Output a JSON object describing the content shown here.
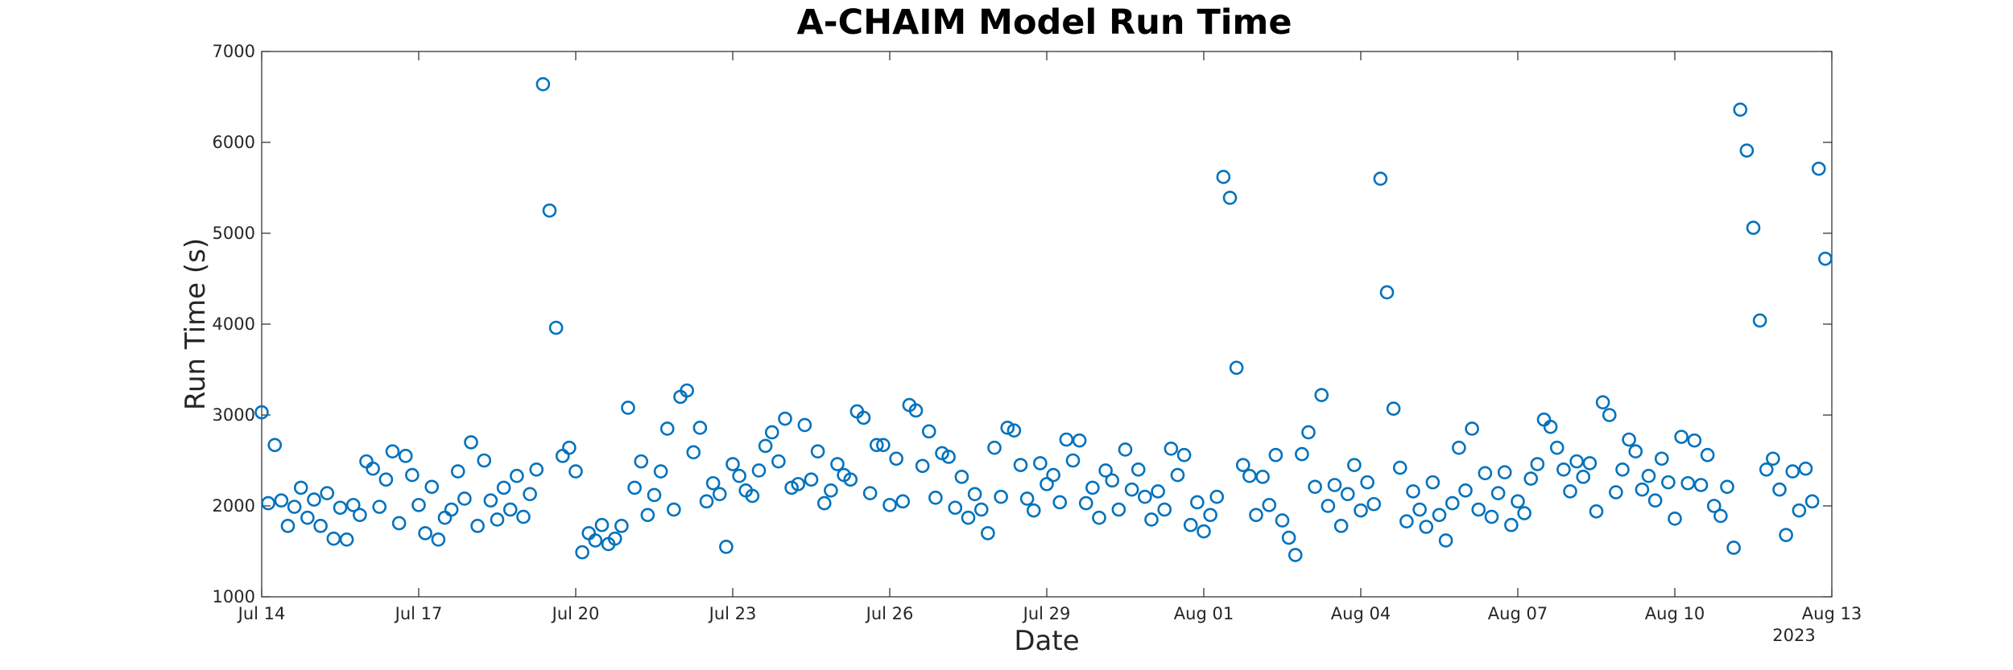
{
  "chart_data": {
    "type": "scatter",
    "title": "A-CHAIM Model Run Time",
    "xlabel": "Date",
    "ylabel": "Run Time (s)",
    "year_label": "2023",
    "xlim": [
      "2023-07-14",
      "2023-08-13"
    ],
    "ylim": [
      1000,
      7000
    ],
    "x_ticks": [
      {
        "date": "2023-07-14",
        "label": "Jul 14"
      },
      {
        "date": "2023-07-17",
        "label": "Jul 17"
      },
      {
        "date": "2023-07-20",
        "label": "Jul 20"
      },
      {
        "date": "2023-07-23",
        "label": "Jul 23"
      },
      {
        "date": "2023-07-26",
        "label": "Jul 26"
      },
      {
        "date": "2023-07-29",
        "label": "Jul 29"
      },
      {
        "date": "2023-08-01",
        "label": "Aug 01"
      },
      {
        "date": "2023-08-04",
        "label": "Aug 04"
      },
      {
        "date": "2023-08-07",
        "label": "Aug 07"
      },
      {
        "date": "2023-08-10",
        "label": "Aug 10"
      },
      {
        "date": "2023-08-13",
        "label": "Aug 13"
      }
    ],
    "y_ticks": [
      1000,
      2000,
      3000,
      4000,
      5000,
      6000,
      7000
    ],
    "marker_color": "#0072BD",
    "grid": false,
    "series": [
      {
        "points": [
          [
            "2023-07-14 00:00",
            3030
          ],
          [
            "2023-07-14 03:00",
            2030
          ],
          [
            "2023-07-14 06:00",
            2670
          ],
          [
            "2023-07-14 09:00",
            2060
          ],
          [
            "2023-07-14 12:00",
            1780
          ],
          [
            "2023-07-14 15:00",
            1990
          ],
          [
            "2023-07-14 18:00",
            2200
          ],
          [
            "2023-07-14 21:00",
            1870
          ],
          [
            "2023-07-15 00:00",
            2070
          ],
          [
            "2023-07-15 03:00",
            1780
          ],
          [
            "2023-07-15 06:00",
            2140
          ],
          [
            "2023-07-15 09:00",
            1640
          ],
          [
            "2023-07-15 12:00",
            1980
          ],
          [
            "2023-07-15 15:00",
            1630
          ],
          [
            "2023-07-15 18:00",
            2010
          ],
          [
            "2023-07-15 21:00",
            1900
          ],
          [
            "2023-07-16 00:00",
            2490
          ],
          [
            "2023-07-16 03:00",
            2410
          ],
          [
            "2023-07-16 06:00",
            1990
          ],
          [
            "2023-07-16 09:00",
            2290
          ],
          [
            "2023-07-16 12:00",
            2600
          ],
          [
            "2023-07-16 15:00",
            1810
          ],
          [
            "2023-07-16 18:00",
            2550
          ],
          [
            "2023-07-16 21:00",
            2340
          ],
          [
            "2023-07-17 00:00",
            2010
          ],
          [
            "2023-07-17 03:00",
            1700
          ],
          [
            "2023-07-17 06:00",
            2210
          ],
          [
            "2023-07-17 09:00",
            1630
          ],
          [
            "2023-07-17 12:00",
            1870
          ],
          [
            "2023-07-17 15:00",
            1960
          ],
          [
            "2023-07-17 18:00",
            2380
          ],
          [
            "2023-07-17 21:00",
            2080
          ],
          [
            "2023-07-18 00:00",
            2700
          ],
          [
            "2023-07-18 03:00",
            1780
          ],
          [
            "2023-07-18 06:00",
            2500
          ],
          [
            "2023-07-18 09:00",
            2060
          ],
          [
            "2023-07-18 12:00",
            1850
          ],
          [
            "2023-07-18 15:00",
            2200
          ],
          [
            "2023-07-18 18:00",
            1960
          ],
          [
            "2023-07-18 21:00",
            2330
          ],
          [
            "2023-07-19 00:00",
            1880
          ],
          [
            "2023-07-19 03:00",
            2130
          ],
          [
            "2023-07-19 06:00",
            2400
          ],
          [
            "2023-07-19 09:00",
            6640
          ],
          [
            "2023-07-19 12:00",
            5250
          ],
          [
            "2023-07-19 15:00",
            3960
          ],
          [
            "2023-07-19 18:00",
            2550
          ],
          [
            "2023-07-19 21:00",
            2640
          ],
          [
            "2023-07-20 00:00",
            2380
          ],
          [
            "2023-07-20 03:00",
            1490
          ],
          [
            "2023-07-20 06:00",
            1700
          ],
          [
            "2023-07-20 09:00",
            1620
          ],
          [
            "2023-07-20 12:00",
            1790
          ],
          [
            "2023-07-20 15:00",
            1580
          ],
          [
            "2023-07-20 18:00",
            1640
          ],
          [
            "2023-07-20 21:00",
            1780
          ],
          [
            "2023-07-21 00:00",
            3080
          ],
          [
            "2023-07-21 03:00",
            2200
          ],
          [
            "2023-07-21 06:00",
            2490
          ],
          [
            "2023-07-21 09:00",
            1900
          ],
          [
            "2023-07-21 12:00",
            2120
          ],
          [
            "2023-07-21 15:00",
            2380
          ],
          [
            "2023-07-21 18:00",
            2850
          ],
          [
            "2023-07-21 21:00",
            1960
          ],
          [
            "2023-07-22 00:00",
            3200
          ],
          [
            "2023-07-22 03:00",
            3270
          ],
          [
            "2023-07-22 06:00",
            2590
          ],
          [
            "2023-07-22 09:00",
            2860
          ],
          [
            "2023-07-22 12:00",
            2050
          ],
          [
            "2023-07-22 15:00",
            2250
          ],
          [
            "2023-07-22 18:00",
            2130
          ],
          [
            "2023-07-22 21:00",
            1550
          ],
          [
            "2023-07-23 00:00",
            2460
          ],
          [
            "2023-07-23 03:00",
            2330
          ],
          [
            "2023-07-23 06:00",
            2170
          ],
          [
            "2023-07-23 09:00",
            2110
          ],
          [
            "2023-07-23 12:00",
            2390
          ],
          [
            "2023-07-23 15:00",
            2660
          ],
          [
            "2023-07-23 18:00",
            2810
          ],
          [
            "2023-07-23 21:00",
            2490
          ],
          [
            "2023-07-24 00:00",
            2960
          ],
          [
            "2023-07-24 03:00",
            2200
          ],
          [
            "2023-07-24 06:00",
            2240
          ],
          [
            "2023-07-24 09:00",
            2890
          ],
          [
            "2023-07-24 12:00",
            2290
          ],
          [
            "2023-07-24 15:00",
            2600
          ],
          [
            "2023-07-24 18:00",
            2030
          ],
          [
            "2023-07-24 21:00",
            2170
          ],
          [
            "2023-07-25 00:00",
            2460
          ],
          [
            "2023-07-25 03:00",
            2340
          ],
          [
            "2023-07-25 06:00",
            2290
          ],
          [
            "2023-07-25 09:00",
            3040
          ],
          [
            "2023-07-25 12:00",
            2970
          ],
          [
            "2023-07-25 15:00",
            2140
          ],
          [
            "2023-07-25 18:00",
            2670
          ],
          [
            "2023-07-25 21:00",
            2670
          ],
          [
            "2023-07-26 00:00",
            2010
          ],
          [
            "2023-07-26 03:00",
            2520
          ],
          [
            "2023-07-26 06:00",
            2050
          ],
          [
            "2023-07-26 09:00",
            3110
          ],
          [
            "2023-07-26 12:00",
            3050
          ],
          [
            "2023-07-26 15:00",
            2440
          ],
          [
            "2023-07-26 18:00",
            2820
          ],
          [
            "2023-07-26 21:00",
            2090
          ],
          [
            "2023-07-27 00:00",
            2580
          ],
          [
            "2023-07-27 03:00",
            2540
          ],
          [
            "2023-07-27 06:00",
            1980
          ],
          [
            "2023-07-27 09:00",
            2320
          ],
          [
            "2023-07-27 12:00",
            1870
          ],
          [
            "2023-07-27 15:00",
            2130
          ],
          [
            "2023-07-27 18:00",
            1960
          ],
          [
            "2023-07-27 21:00",
            1700
          ],
          [
            "2023-07-28 00:00",
            2640
          ],
          [
            "2023-07-28 03:00",
            2100
          ],
          [
            "2023-07-28 06:00",
            2860
          ],
          [
            "2023-07-28 09:00",
            2830
          ],
          [
            "2023-07-28 12:00",
            2450
          ],
          [
            "2023-07-28 15:00",
            2080
          ],
          [
            "2023-07-28 18:00",
            1950
          ],
          [
            "2023-07-28 21:00",
            2470
          ],
          [
            "2023-07-29 00:00",
            2240
          ],
          [
            "2023-07-29 03:00",
            2340
          ],
          [
            "2023-07-29 06:00",
            2040
          ],
          [
            "2023-07-29 09:00",
            2730
          ],
          [
            "2023-07-29 12:00",
            2500
          ],
          [
            "2023-07-29 15:00",
            2720
          ],
          [
            "2023-07-29 18:00",
            2030
          ],
          [
            "2023-07-29 21:00",
            2200
          ],
          [
            "2023-07-30 00:00",
            1870
          ],
          [
            "2023-07-30 03:00",
            2390
          ],
          [
            "2023-07-30 06:00",
            2280
          ],
          [
            "2023-07-30 09:00",
            1960
          ],
          [
            "2023-07-30 12:00",
            2620
          ],
          [
            "2023-07-30 15:00",
            2180
          ],
          [
            "2023-07-30 18:00",
            2400
          ],
          [
            "2023-07-30 21:00",
            2100
          ],
          [
            "2023-07-31 00:00",
            1850
          ],
          [
            "2023-07-31 03:00",
            2160
          ],
          [
            "2023-07-31 06:00",
            1960
          ],
          [
            "2023-07-31 09:00",
            2630
          ],
          [
            "2023-07-31 12:00",
            2340
          ],
          [
            "2023-07-31 15:00",
            2560
          ],
          [
            "2023-07-31 18:00",
            1790
          ],
          [
            "2023-07-31 21:00",
            2040
          ],
          [
            "2023-08-01 00:00",
            1720
          ],
          [
            "2023-08-01 03:00",
            1900
          ],
          [
            "2023-08-01 06:00",
            2100
          ],
          [
            "2023-08-01 09:00",
            5620
          ],
          [
            "2023-08-01 12:00",
            5390
          ],
          [
            "2023-08-01 15:00",
            3520
          ],
          [
            "2023-08-01 18:00",
            2450
          ],
          [
            "2023-08-01 21:00",
            2330
          ],
          [
            "2023-08-02 00:00",
            1900
          ],
          [
            "2023-08-02 03:00",
            2320
          ],
          [
            "2023-08-02 06:00",
            2010
          ],
          [
            "2023-08-02 09:00",
            2560
          ],
          [
            "2023-08-02 12:00",
            1840
          ],
          [
            "2023-08-02 15:00",
            1650
          ],
          [
            "2023-08-02 18:00",
            1460
          ],
          [
            "2023-08-02 21:00",
            2570
          ],
          [
            "2023-08-03 00:00",
            2810
          ],
          [
            "2023-08-03 03:00",
            2210
          ],
          [
            "2023-08-03 06:00",
            3220
          ],
          [
            "2023-08-03 09:00",
            2000
          ],
          [
            "2023-08-03 12:00",
            2230
          ],
          [
            "2023-08-03 15:00",
            1780
          ],
          [
            "2023-08-03 18:00",
            2130
          ],
          [
            "2023-08-03 21:00",
            2450
          ],
          [
            "2023-08-04 00:00",
            1950
          ],
          [
            "2023-08-04 03:00",
            2260
          ],
          [
            "2023-08-04 06:00",
            2020
          ],
          [
            "2023-08-04 09:00",
            5600
          ],
          [
            "2023-08-04 12:00",
            4350
          ],
          [
            "2023-08-04 15:00",
            3070
          ],
          [
            "2023-08-04 18:00",
            2420
          ],
          [
            "2023-08-04 21:00",
            1830
          ],
          [
            "2023-08-05 00:00",
            2160
          ],
          [
            "2023-08-05 03:00",
            1960
          ],
          [
            "2023-08-05 06:00",
            1770
          ],
          [
            "2023-08-05 09:00",
            2260
          ],
          [
            "2023-08-05 12:00",
            1900
          ],
          [
            "2023-08-05 15:00",
            1620
          ],
          [
            "2023-08-05 18:00",
            2030
          ],
          [
            "2023-08-05 21:00",
            2640
          ],
          [
            "2023-08-06 00:00",
            2170
          ],
          [
            "2023-08-06 03:00",
            2850
          ],
          [
            "2023-08-06 06:00",
            1960
          ],
          [
            "2023-08-06 09:00",
            2360
          ],
          [
            "2023-08-06 12:00",
            1880
          ],
          [
            "2023-08-06 15:00",
            2140
          ],
          [
            "2023-08-06 18:00",
            2370
          ],
          [
            "2023-08-06 21:00",
            1790
          ],
          [
            "2023-08-07 00:00",
            2050
          ],
          [
            "2023-08-07 03:00",
            1920
          ],
          [
            "2023-08-07 06:00",
            2300
          ],
          [
            "2023-08-07 09:00",
            2460
          ],
          [
            "2023-08-07 12:00",
            2950
          ],
          [
            "2023-08-07 15:00",
            2870
          ],
          [
            "2023-08-07 18:00",
            2640
          ],
          [
            "2023-08-07 21:00",
            2400
          ],
          [
            "2023-08-08 00:00",
            2160
          ],
          [
            "2023-08-08 03:00",
            2490
          ],
          [
            "2023-08-08 06:00",
            2320
          ],
          [
            "2023-08-08 09:00",
            2470
          ],
          [
            "2023-08-08 12:00",
            1940
          ],
          [
            "2023-08-08 15:00",
            3140
          ],
          [
            "2023-08-08 18:00",
            3000
          ],
          [
            "2023-08-08 21:00",
            2150
          ],
          [
            "2023-08-09 00:00",
            2400
          ],
          [
            "2023-08-09 03:00",
            2730
          ],
          [
            "2023-08-09 06:00",
            2600
          ],
          [
            "2023-08-09 09:00",
            2180
          ],
          [
            "2023-08-09 12:00",
            2330
          ],
          [
            "2023-08-09 15:00",
            2060
          ],
          [
            "2023-08-09 18:00",
            2520
          ],
          [
            "2023-08-09 21:00",
            2260
          ],
          [
            "2023-08-10 00:00",
            1860
          ],
          [
            "2023-08-10 03:00",
            2760
          ],
          [
            "2023-08-10 06:00",
            2250
          ],
          [
            "2023-08-10 09:00",
            2720
          ],
          [
            "2023-08-10 12:00",
            2230
          ],
          [
            "2023-08-10 15:00",
            2560
          ],
          [
            "2023-08-10 18:00",
            2000
          ],
          [
            "2023-08-10 21:00",
            1890
          ],
          [
            "2023-08-11 00:00",
            2210
          ],
          [
            "2023-08-11 03:00",
            1540
          ],
          [
            "2023-08-11 06:00",
            6360
          ],
          [
            "2023-08-11 09:00",
            5910
          ],
          [
            "2023-08-11 12:00",
            5060
          ],
          [
            "2023-08-11 15:00",
            4040
          ],
          [
            "2023-08-11 18:00",
            2400
          ],
          [
            "2023-08-11 21:00",
            2520
          ],
          [
            "2023-08-12 00:00",
            2180
          ],
          [
            "2023-08-12 03:00",
            1680
          ],
          [
            "2023-08-12 06:00",
            2380
          ],
          [
            "2023-08-12 09:00",
            1950
          ],
          [
            "2023-08-12 12:00",
            2410
          ],
          [
            "2023-08-12 15:00",
            2050
          ],
          [
            "2023-08-12 18:00",
            5710
          ],
          [
            "2023-08-12 21:00",
            4720
          ]
        ]
      }
    ]
  }
}
